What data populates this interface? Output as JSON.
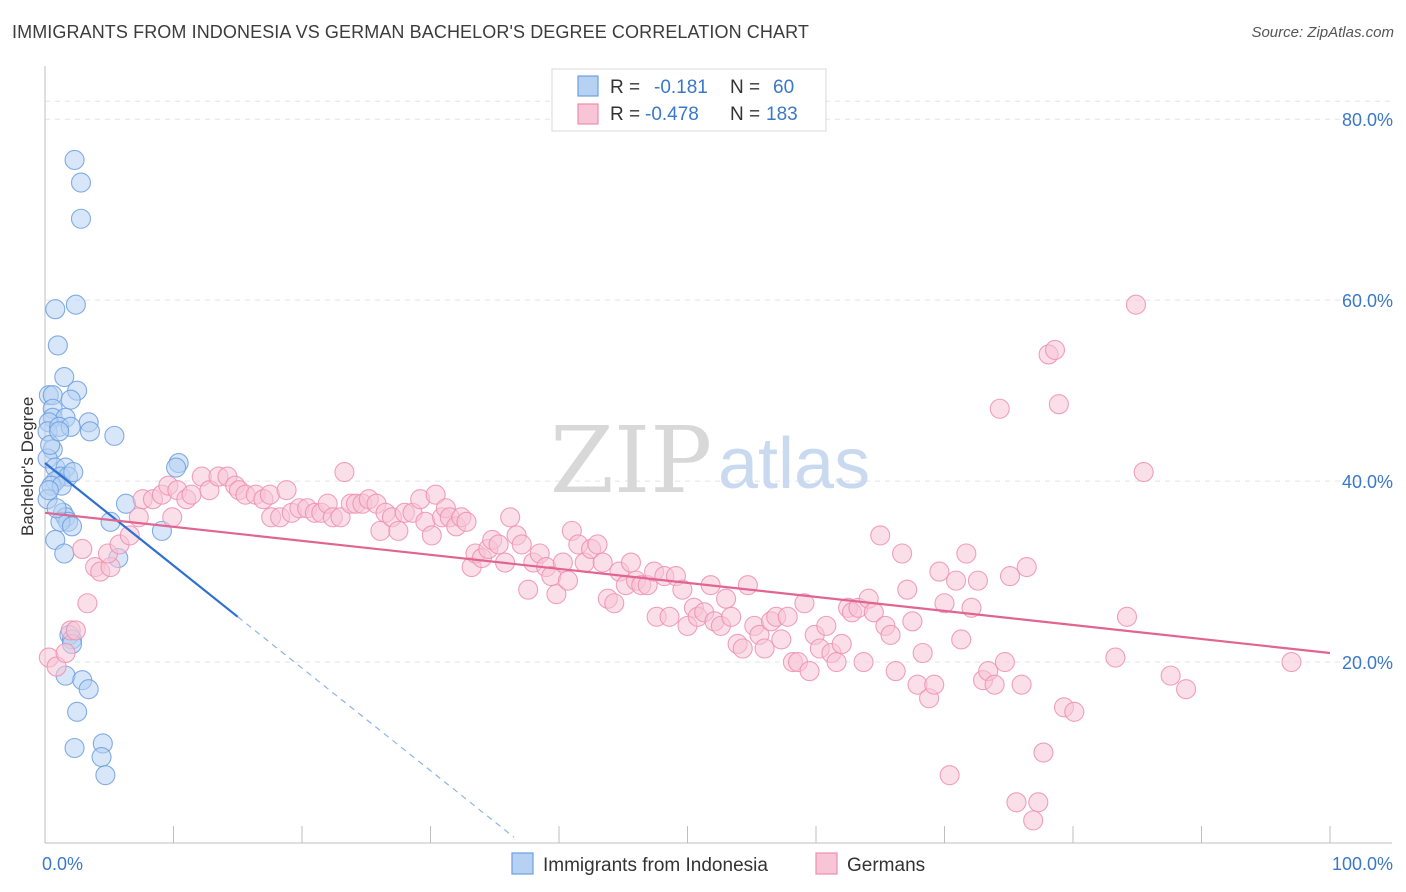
{
  "title": "IMMIGRANTS FROM INDONESIA VS GERMAN BACHELOR'S DEGREE CORRELATION CHART",
  "source": "Source: ZipAtlas.com",
  "watermark": {
    "zip": "ZIP",
    "atlas": "atlas"
  },
  "legend_top": {
    "rows": [
      {
        "r_label": "R =",
        "r_value": "-0.181",
        "n_label": "N =",
        "n_value": "60",
        "color": "#a9c8f0"
      },
      {
        "r_label": "R =",
        "r_value": "-0.478",
        "n_label": "N =",
        "n_value": "183",
        "color": "#f7b7cb"
      }
    ]
  },
  "chart_data": {
    "type": "scatter",
    "xlabel": "",
    "ylabel": "Bachelor's Degree",
    "xlim": [
      0,
      100
    ],
    "ylim": [
      0,
      85
    ],
    "x_ticks": [
      "0.0%",
      "100.0%"
    ],
    "y_ticks": [
      {
        "value": 20,
        "label": "20.0%"
      },
      {
        "value": 40,
        "label": "40.0%"
      },
      {
        "value": 60,
        "label": "60.0%"
      },
      {
        "value": 80,
        "label": "80.0%"
      }
    ],
    "grid": true,
    "legend_position": "bottom-center",
    "series": [
      {
        "name": "Immigrants from Indonesia",
        "color": "#6d9fe0",
        "fill": "#b7d1f3",
        "trend": {
          "x": [
            0,
            15
          ],
          "y": [
            42,
            25
          ],
          "dashed_to_x": 36.5,
          "line_color": "#2f6fd1"
        },
        "points": [
          [
            2.3,
            75.5
          ],
          [
            2.8,
            73
          ],
          [
            2.8,
            69
          ],
          [
            0.8,
            59
          ],
          [
            2.4,
            59.5
          ],
          [
            1,
            55
          ],
          [
            1.5,
            51.5
          ],
          [
            0.3,
            49.5
          ],
          [
            0.6,
            49.5
          ],
          [
            2.5,
            50
          ],
          [
            2,
            49
          ],
          [
            0.6,
            48
          ],
          [
            0.6,
            47
          ],
          [
            1.6,
            47
          ],
          [
            0.3,
            46.5
          ],
          [
            3.4,
            46.5
          ],
          [
            0.2,
            45.5
          ],
          [
            1.1,
            46
          ],
          [
            2,
            46
          ],
          [
            3.5,
            45.5
          ],
          [
            5.4,
            45
          ],
          [
            0.6,
            43.5
          ],
          [
            0.2,
            42.5
          ],
          [
            0.8,
            41.5
          ],
          [
            1.6,
            41.5
          ],
          [
            1.2,
            40.5
          ],
          [
            1.8,
            40.5
          ],
          [
            0.8,
            40
          ],
          [
            0.5,
            39.5
          ],
          [
            1.3,
            39.5
          ],
          [
            10.4,
            42
          ],
          [
            10.2,
            41.5
          ],
          [
            0.2,
            38
          ],
          [
            6.3,
            37.5
          ],
          [
            1.4,
            36.5
          ],
          [
            1.6,
            36
          ],
          [
            1.8,
            35.5
          ],
          [
            1.2,
            35.5
          ],
          [
            2.1,
            35
          ],
          [
            5.1,
            35.5
          ],
          [
            9.1,
            34.5
          ],
          [
            0.8,
            33.5
          ],
          [
            1.5,
            32
          ],
          [
            5.7,
            31.5
          ],
          [
            1.9,
            23
          ],
          [
            2.1,
            22.5
          ],
          [
            2.1,
            22
          ],
          [
            1.6,
            18.5
          ],
          [
            2.9,
            18
          ],
          [
            3.4,
            17
          ],
          [
            2.5,
            14.5
          ],
          [
            2.3,
            10.5
          ],
          [
            4.5,
            11
          ],
          [
            4.4,
            9.5
          ],
          [
            4.7,
            7.5
          ],
          [
            0.3,
            39
          ],
          [
            0.4,
            44
          ],
          [
            1.1,
            45.5
          ],
          [
            2.2,
            41
          ],
          [
            0.9,
            37
          ]
        ]
      },
      {
        "name": "Germans",
        "color": "#ee8fb0",
        "fill": "#f7c5d6",
        "trend": {
          "x": [
            0,
            100
          ],
          "y": [
            36.5,
            21.0
          ],
          "line_color": "#e06591"
        },
        "points": [
          [
            0.3,
            20.5
          ],
          [
            0.9,
            19.5
          ],
          [
            1.6,
            21
          ],
          [
            2,
            23.5
          ],
          [
            2.4,
            23.5
          ],
          [
            3.3,
            26.5
          ],
          [
            2.9,
            32.5
          ],
          [
            3.9,
            30.5
          ],
          [
            4.3,
            30
          ],
          [
            5.1,
            30.5
          ],
          [
            4.9,
            32
          ],
          [
            5.8,
            33
          ],
          [
            6.6,
            34
          ],
          [
            7.3,
            36
          ],
          [
            7.6,
            38
          ],
          [
            8.4,
            38
          ],
          [
            9.1,
            38.5
          ],
          [
            9.6,
            39.5
          ],
          [
            10.3,
            39
          ],
          [
            9.9,
            36
          ],
          [
            11,
            38
          ],
          [
            11.4,
            38.5
          ],
          [
            12.2,
            40.5
          ],
          [
            12.8,
            39
          ],
          [
            13.5,
            40.5
          ],
          [
            14.2,
            40.5
          ],
          [
            14.8,
            39.5
          ],
          [
            15.1,
            39
          ],
          [
            15.6,
            38.5
          ],
          [
            16.4,
            38.5
          ],
          [
            17,
            38
          ],
          [
            17.5,
            38.5
          ],
          [
            17.6,
            36
          ],
          [
            18.3,
            36
          ],
          [
            18.8,
            39
          ],
          [
            19.2,
            36.5
          ],
          [
            19.8,
            37
          ],
          [
            20.4,
            37
          ],
          [
            21,
            36.5
          ],
          [
            21.5,
            36.5
          ],
          [
            22,
            37.5
          ],
          [
            22.4,
            36
          ],
          [
            23,
            36
          ],
          [
            23.3,
            41
          ],
          [
            23.8,
            37.5
          ],
          [
            24.2,
            37.5
          ],
          [
            24.7,
            37.5
          ],
          [
            25.2,
            38
          ],
          [
            25.8,
            37.5
          ],
          [
            26.1,
            34.5
          ],
          [
            26.5,
            36.5
          ],
          [
            27,
            36
          ],
          [
            27.5,
            34.5
          ],
          [
            28,
            36.5
          ],
          [
            28.6,
            36.5
          ],
          [
            29.2,
            38
          ],
          [
            29.6,
            35.5
          ],
          [
            30.1,
            34
          ],
          [
            30.4,
            38.5
          ],
          [
            30.9,
            36
          ],
          [
            31.2,
            37
          ],
          [
            31.5,
            36
          ],
          [
            32,
            35
          ],
          [
            32.4,
            36
          ],
          [
            32.8,
            35.5
          ],
          [
            33.2,
            30.5
          ],
          [
            33.5,
            32
          ],
          [
            34,
            31.5
          ],
          [
            34.5,
            32.5
          ],
          [
            34.8,
            33.5
          ],
          [
            35.3,
            33
          ],
          [
            35.8,
            31
          ],
          [
            36.2,
            36
          ],
          [
            36.7,
            34
          ],
          [
            37.1,
            33
          ],
          [
            37.6,
            28
          ],
          [
            38,
            31
          ],
          [
            38.5,
            32
          ],
          [
            39,
            30.5
          ],
          [
            39.4,
            29.5
          ],
          [
            39.8,
            27.5
          ],
          [
            40.3,
            31
          ],
          [
            40.7,
            29
          ],
          [
            41,
            34.5
          ],
          [
            41.5,
            33
          ],
          [
            42,
            31
          ],
          [
            42.5,
            32.5
          ],
          [
            43,
            33
          ],
          [
            43.4,
            31
          ],
          [
            43.8,
            27
          ],
          [
            44.3,
            26.5
          ],
          [
            44.7,
            30
          ],
          [
            45.2,
            28.5
          ],
          [
            45.6,
            31
          ],
          [
            46,
            29
          ],
          [
            46.4,
            28.5
          ],
          [
            46.9,
            28.5
          ],
          [
            47.4,
            30
          ],
          [
            47.6,
            25
          ],
          [
            48.2,
            29.5
          ],
          [
            48.6,
            25
          ],
          [
            49.1,
            29.5
          ],
          [
            49.6,
            28
          ],
          [
            50,
            24
          ],
          [
            50.5,
            26
          ],
          [
            50.8,
            25
          ],
          [
            51.3,
            25.5
          ],
          [
            51.8,
            28.5
          ],
          [
            52.1,
            24.5
          ],
          [
            52.6,
            24
          ],
          [
            53,
            27
          ],
          [
            53.4,
            25
          ],
          [
            53.9,
            22
          ],
          [
            54.3,
            21.5
          ],
          [
            54.7,
            28.5
          ],
          [
            55.2,
            24
          ],
          [
            55.6,
            23
          ],
          [
            56,
            21.5
          ],
          [
            56.5,
            24.5
          ],
          [
            56.9,
            25
          ],
          [
            57.3,
            22.5
          ],
          [
            57.8,
            25
          ],
          [
            58.2,
            20
          ],
          [
            58.6,
            20
          ],
          [
            59.1,
            26.5
          ],
          [
            59.5,
            19
          ],
          [
            59.9,
            23
          ],
          [
            60.3,
            21.5
          ],
          [
            60.8,
            24
          ],
          [
            61.2,
            21
          ],
          [
            61.6,
            20
          ],
          [
            62,
            22
          ],
          [
            62.5,
            26
          ],
          [
            62.8,
            25.5
          ],
          [
            63.3,
            26
          ],
          [
            63.7,
            20
          ],
          [
            64.1,
            27
          ],
          [
            64.5,
            25.5
          ],
          [
            65,
            34
          ],
          [
            65.4,
            24
          ],
          [
            65.8,
            23
          ],
          [
            66.2,
            19
          ],
          [
            66.7,
            32
          ],
          [
            67.1,
            28
          ],
          [
            67.5,
            24.5
          ],
          [
            67.9,
            17.5
          ],
          [
            68.3,
            21
          ],
          [
            68.8,
            16
          ],
          [
            69.2,
            17.5
          ],
          [
            69.6,
            30
          ],
          [
            70,
            26.5
          ],
          [
            70.4,
            7.5
          ],
          [
            70.9,
            29
          ],
          [
            71.3,
            22.5
          ],
          [
            71.7,
            32
          ],
          [
            72.1,
            26
          ],
          [
            72.6,
            29
          ],
          [
            73,
            18
          ],
          [
            73.4,
            19
          ],
          [
            73.9,
            17.5
          ],
          [
            74.3,
            48
          ],
          [
            74.7,
            20
          ],
          [
            75.1,
            29.5
          ],
          [
            75.6,
            4.5
          ],
          [
            76,
            17.5
          ],
          [
            76.4,
            30.5
          ],
          [
            76.9,
            2.5
          ],
          [
            77.3,
            4.5
          ],
          [
            77.7,
            10
          ],
          [
            78.1,
            54
          ],
          [
            78.6,
            54.5
          ],
          [
            78.9,
            48.5
          ],
          [
            79.3,
            15
          ],
          [
            80.1,
            14.5
          ],
          [
            83.3,
            20.5
          ],
          [
            84.2,
            25
          ],
          [
            84.9,
            59.5
          ],
          [
            85.5,
            41
          ],
          [
            87.6,
            18.5
          ],
          [
            88.8,
            17
          ],
          [
            97,
            20
          ]
        ]
      }
    ]
  },
  "bottom_legend": [
    {
      "label": "Immigrants from Indonesia",
      "color": "#b7d1f3",
      "stroke": "#6d9fe0"
    },
    {
      "label": "Germans",
      "color": "#f7c5d6",
      "stroke": "#ee8fb0"
    }
  ]
}
